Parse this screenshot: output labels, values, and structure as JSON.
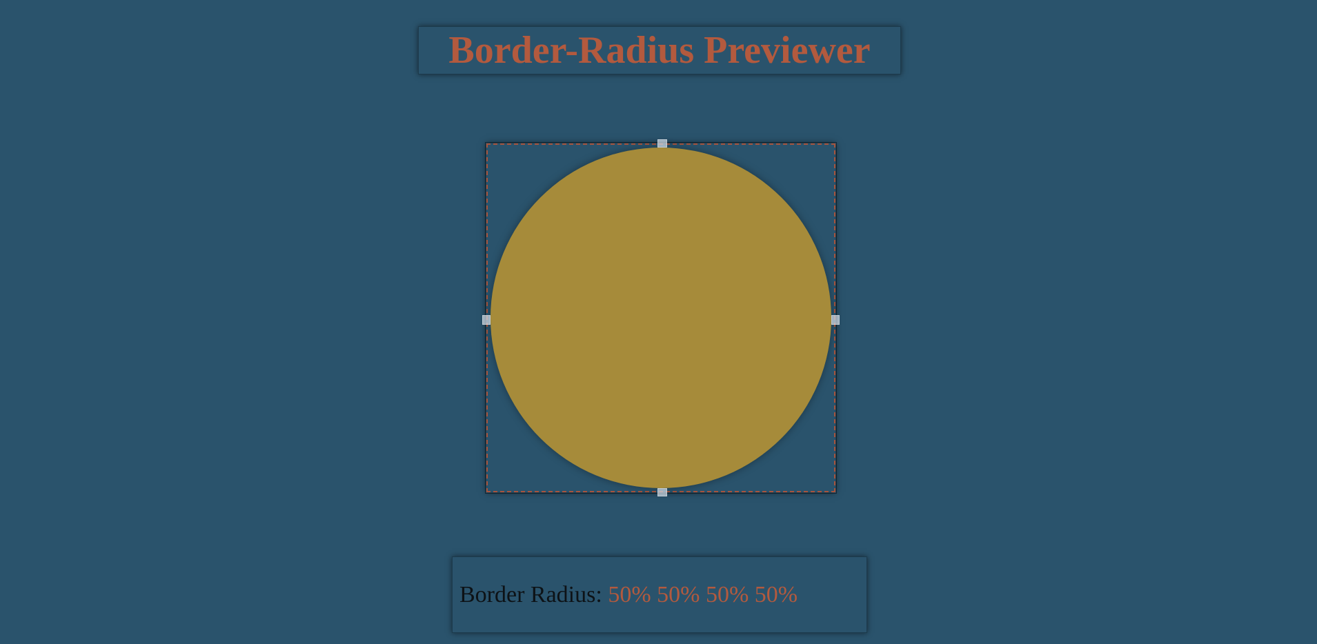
{
  "header": {
    "title": "Border-Radius Previewer"
  },
  "preview": {
    "radius": [
      "50%",
      "50%",
      "50%",
      "50%"
    ],
    "handles": [
      "top",
      "right",
      "bottom",
      "left"
    ]
  },
  "output": {
    "label": "Border Radius: ",
    "value": "50% 50% 50% 50%"
  },
  "colors": {
    "background": "#2a536c",
    "accent": "#b35a3e",
    "shape": "#a68b3a"
  }
}
